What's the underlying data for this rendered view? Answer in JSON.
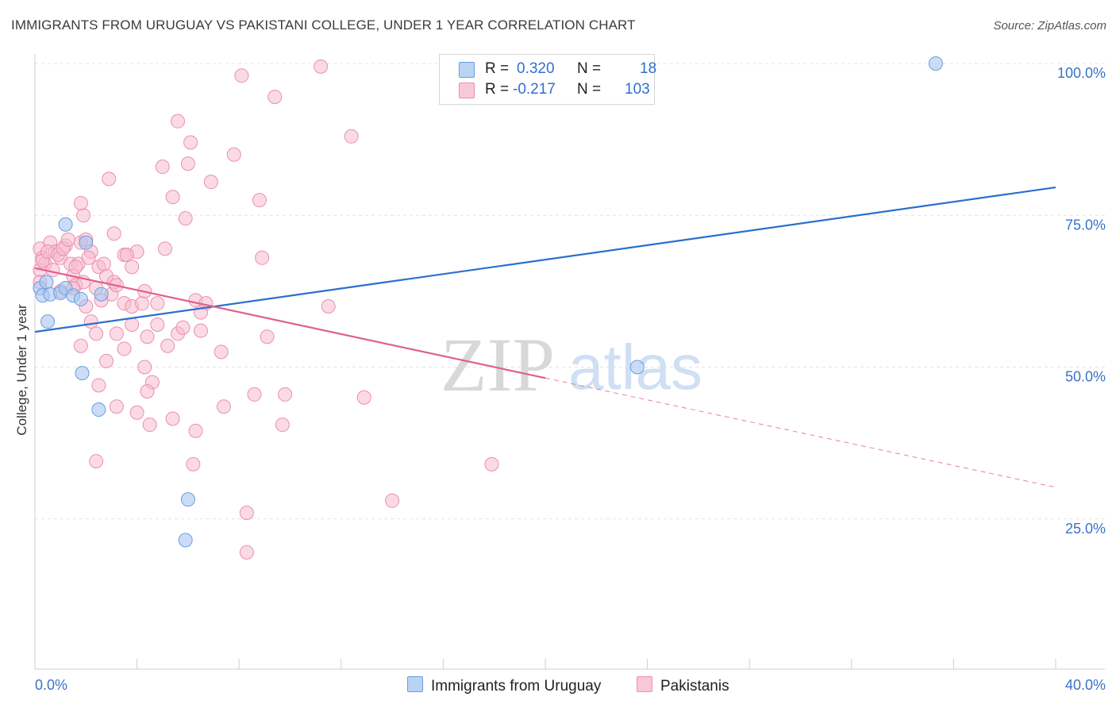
{
  "title": "IMMIGRANTS FROM URUGUAY VS PAKISTANI COLLEGE, UNDER 1 YEAR CORRELATION CHART",
  "source": "Source: ZipAtlas.com",
  "watermark": {
    "zip": "ZIP",
    "atlas": "atlas"
  },
  "legend": {
    "rows": [
      {
        "r_label": "R =",
        "r_value": "0.320",
        "n_label": "N =",
        "n_value": "18"
      },
      {
        "r_label": "R =",
        "r_value": "-0.217",
        "n_label": "N =",
        "n_value": "103"
      }
    ]
  },
  "bottom_legend": {
    "series1": "Immigrants from Uruguay",
    "series2": "Pakistanis"
  },
  "colors": {
    "blue_fill": "#a9c7f0",
    "blue_stroke": "#6a9de0",
    "blue_line": "#2a6fd0",
    "pink_fill": "#f7bcd0",
    "pink_stroke": "#ea8fb0",
    "pink_line": "#e0608e",
    "tick_label": "#3a72c9",
    "grid": "#e3e3e3"
  },
  "chart_data": {
    "type": "scatter",
    "title": "IMMIGRANTS FROM URUGUAY VS PAKISTANI COLLEGE, UNDER 1 YEAR CORRELATION CHART",
    "xlabel": "",
    "ylabel": "College, Under 1 year",
    "xlim": [
      0,
      40
    ],
    "ylim": [
      0,
      102
    ],
    "x_tick_labels": [
      "0.0%",
      "40.0%"
    ],
    "y_ticks": [
      25,
      50,
      75,
      100
    ],
    "y_tick_labels": [
      "25.0%",
      "50.0%",
      "75.0%",
      "100.0%"
    ],
    "series": [
      {
        "name": "Immigrants from Uruguay",
        "R": 0.32,
        "N": 18,
        "points": [
          [
            0.2,
            63
          ],
          [
            0.3,
            61.8
          ],
          [
            0.45,
            64
          ],
          [
            0.5,
            57.5
          ],
          [
            0.6,
            62
          ],
          [
            1.0,
            62.2
          ],
          [
            1.2,
            63
          ],
          [
            1.5,
            61.8
          ],
          [
            1.8,
            61.2
          ],
          [
            2.6,
            62
          ],
          [
            2.0,
            70.5
          ],
          [
            1.2,
            73.5
          ],
          [
            1.85,
            49
          ],
          [
            2.5,
            43
          ],
          [
            6.0,
            28.2
          ],
          [
            5.9,
            21.5
          ],
          [
            23.6,
            50
          ],
          [
            35.3,
            100
          ]
        ],
        "trend": {
          "x": [
            0,
            40
          ],
          "y": [
            55.8,
            79.6
          ]
        }
      },
      {
        "name": "Pakistanis",
        "R": -0.217,
        "N": 103,
        "points": [
          [
            0.2,
            69.5
          ],
          [
            0.2,
            66
          ],
          [
            0.2,
            64
          ],
          [
            0.3,
            68
          ],
          [
            0.4,
            67
          ],
          [
            0.6,
            70.5
          ],
          [
            0.8,
            69
          ],
          [
            1.0,
            68
          ],
          [
            1.2,
            70
          ],
          [
            1.4,
            67
          ],
          [
            1.5,
            65
          ],
          [
            1.6,
            63.5
          ],
          [
            1.8,
            70.5
          ],
          [
            2.0,
            71
          ],
          [
            2.2,
            69
          ],
          [
            2.5,
            66.5
          ],
          [
            2.8,
            65
          ],
          [
            3.0,
            62
          ],
          [
            0.3,
            67.5
          ],
          [
            0.5,
            69
          ],
          [
            0.7,
            66
          ],
          [
            0.9,
            68.5
          ],
          [
            1.1,
            69.5
          ],
          [
            1.3,
            71
          ],
          [
            1.7,
            67
          ],
          [
            1.9,
            64
          ],
          [
            2.1,
            68
          ],
          [
            2.4,
            63
          ],
          [
            2.6,
            61
          ],
          [
            2.7,
            67
          ],
          [
            3.1,
            64
          ],
          [
            3.2,
            63.5
          ],
          [
            3.5,
            68.5
          ],
          [
            3.8,
            66.5
          ],
          [
            4.0,
            69
          ],
          [
            1.9,
            75
          ],
          [
            1.8,
            77
          ],
          [
            2.9,
            81
          ],
          [
            3.1,
            72
          ],
          [
            3.6,
            68.5
          ],
          [
            3.5,
            60.5
          ],
          [
            3.8,
            60
          ],
          [
            4.2,
            60.5
          ],
          [
            2.2,
            57.5
          ],
          [
            2.4,
            55.5
          ],
          [
            3.2,
            55.5
          ],
          [
            3.5,
            53
          ],
          [
            3.8,
            57
          ],
          [
            4.4,
            55
          ],
          [
            4.8,
            57
          ],
          [
            5.2,
            53.5
          ],
          [
            5.6,
            55.5
          ],
          [
            5.8,
            56.5
          ],
          [
            6.3,
            61
          ],
          [
            6.5,
            56
          ],
          [
            1.8,
            53.5
          ],
          [
            2.8,
            51
          ],
          [
            4.3,
            50
          ],
          [
            4.6,
            47.5
          ],
          [
            4.4,
            46
          ],
          [
            2.5,
            47
          ],
          [
            3.2,
            43.5
          ],
          [
            4.0,
            42.5
          ],
          [
            4.5,
            40.5
          ],
          [
            5.4,
            41.5
          ],
          [
            6.3,
            39.5
          ],
          [
            6.7,
            60.5
          ],
          [
            7.3,
            52.5
          ],
          [
            7.4,
            43.5
          ],
          [
            8.6,
            45.5
          ],
          [
            9.1,
            55
          ],
          [
            9.8,
            45.5
          ],
          [
            9.7,
            40.5
          ],
          [
            11.5,
            60
          ],
          [
            12.9,
            45
          ],
          [
            2.4,
            34.5
          ],
          [
            6.2,
            34
          ],
          [
            8.3,
            26
          ],
          [
            8.3,
            19.5
          ],
          [
            14.0,
            28
          ],
          [
            17.9,
            34
          ],
          [
            5.6,
            90.5
          ],
          [
            5.0,
            83
          ],
          [
            5.4,
            78
          ],
          [
            6.0,
            83.5
          ],
          [
            6.1,
            87
          ],
          [
            5.9,
            74.5
          ],
          [
            6.9,
            80.5
          ],
          [
            7.8,
            85
          ],
          [
            8.1,
            98
          ],
          [
            8.8,
            77.5
          ],
          [
            9.4,
            94.5
          ],
          [
            11.2,
            99.5
          ],
          [
            12.4,
            88
          ],
          [
            5.1,
            69.5
          ],
          [
            8.9,
            68
          ],
          [
            1.5,
            63
          ],
          [
            2.0,
            60
          ],
          [
            4.8,
            60.5
          ],
          [
            6.5,
            59
          ],
          [
            1.6,
            66.5
          ],
          [
            1.0,
            62.5
          ],
          [
            4.3,
            62.5
          ]
        ],
        "trend": {
          "x": [
            0,
            20
          ],
          "y": [
            66.3,
            48.2
          ]
        },
        "trend_extension": {
          "x": [
            20,
            40
          ],
          "y": [
            48.2,
            30.2
          ]
        }
      }
    ]
  }
}
